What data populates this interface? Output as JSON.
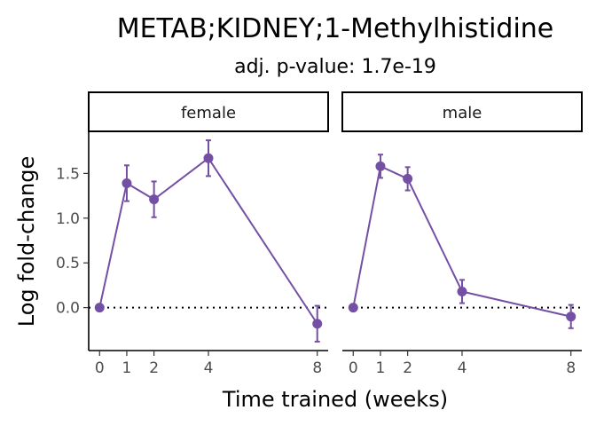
{
  "chart_data": {
    "type": "line",
    "title": "METAB;KIDNEY;1-Methylhistidine",
    "subtitle": "adj. p-value: 1.7e-19",
    "xlabel": "Time trained (weeks)",
    "ylabel": "Log fold-change",
    "x_ticks": [
      0,
      1,
      2,
      4,
      8
    ],
    "y_ticks": [
      0.0,
      0.5,
      1.0,
      1.5
    ],
    "y_tick_labels": [
      "0.0",
      "0.5",
      "1.0",
      "1.5"
    ],
    "ylim": [
      -0.48,
      1.97
    ],
    "xlim": [
      -0.4,
      8.4
    ],
    "reference_line": 0,
    "color": "#7450a4",
    "grid": false,
    "panels": [
      {
        "label": "female",
        "points": [
          {
            "x": 0,
            "y": 0.0,
            "lo": 0.0,
            "hi": 0.0
          },
          {
            "x": 1,
            "y": 1.39,
            "lo": 1.19,
            "hi": 1.59
          },
          {
            "x": 2,
            "y": 1.21,
            "lo": 1.01,
            "hi": 1.41
          },
          {
            "x": 4,
            "y": 1.67,
            "lo": 1.47,
            "hi": 1.87
          },
          {
            "x": 8,
            "y": -0.18,
            "lo": -0.38,
            "hi": 0.02
          }
        ]
      },
      {
        "label": "male",
        "points": [
          {
            "x": 0,
            "y": 0.0,
            "lo": 0.0,
            "hi": 0.0
          },
          {
            "x": 1,
            "y": 1.58,
            "lo": 1.45,
            "hi": 1.71
          },
          {
            "x": 2,
            "y": 1.44,
            "lo": 1.31,
            "hi": 1.57
          },
          {
            "x": 4,
            "y": 0.18,
            "lo": 0.05,
            "hi": 0.31
          },
          {
            "x": 8,
            "y": -0.1,
            "lo": -0.23,
            "hi": 0.03
          }
        ]
      }
    ]
  }
}
